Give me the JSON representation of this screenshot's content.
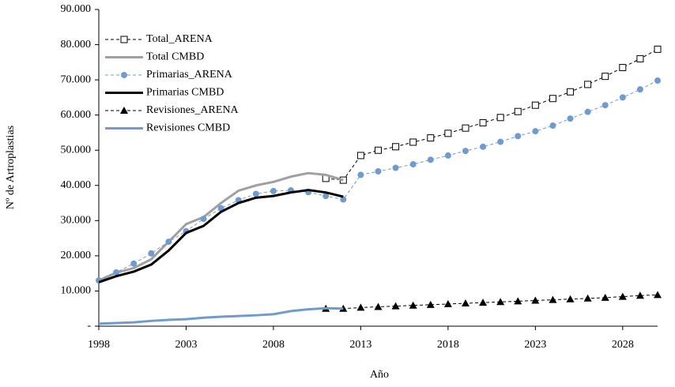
{
  "chart_data": {
    "type": "line",
    "x_label": "Año",
    "y_label": "Nº de Artroplastias",
    "xlim": [
      1998,
      2030
    ],
    "ylim": [
      0,
      90000
    ],
    "xticks": [
      1998,
      2003,
      2008,
      2013,
      2018,
      2023,
      2028
    ],
    "yticks": [
      {
        "value": 0,
        "label": "-"
      },
      {
        "value": 10000,
        "label": "10.000"
      },
      {
        "value": 20000,
        "label": "20.000"
      },
      {
        "value": 30000,
        "label": "30.000"
      },
      {
        "value": 40000,
        "label": "40.000"
      },
      {
        "value": 50000,
        "label": "50.000"
      },
      {
        "value": 60000,
        "label": "60.000"
      },
      {
        "value": 70000,
        "label": "70.000"
      },
      {
        "value": 80000,
        "label": "80.000"
      },
      {
        "value": 90000,
        "label": "90.000"
      }
    ],
    "legend": "upper-left",
    "series": [
      {
        "name": "Total_ARENA",
        "color": "#000000",
        "dash": true,
        "marker": "square",
        "width": 1,
        "x": [
          2011,
          2012,
          2013,
          2014,
          2015,
          2016,
          2017,
          2018,
          2019,
          2020,
          2021,
          2022,
          2023,
          2024,
          2025,
          2026,
          2027,
          2028,
          2029,
          2030
        ],
        "values": [
          42000,
          41500,
          48500,
          50000,
          51000,
          52300,
          53500,
          54800,
          56300,
          57800,
          59300,
          61000,
          62800,
          64700,
          66600,
          68700,
          71000,
          73500,
          76000,
          78700
        ]
      },
      {
        "name": "Total CMBD",
        "color": "#a0a0a0",
        "dash": false,
        "marker": "none",
        "width": 3,
        "x": [
          1998,
          1999,
          2000,
          2001,
          2002,
          2003,
          2004,
          2005,
          2006,
          2007,
          2008,
          2009,
          2010,
          2011,
          2012
        ],
        "values": [
          13000,
          15200,
          16500,
          19000,
          24000,
          29000,
          31000,
          35000,
          38500,
          40000,
          41000,
          42500,
          43500,
          43000,
          41500
        ]
      },
      {
        "name": "Primarias_ARENA",
        "color": "#6f9bcf",
        "dash": true,
        "marker": "circle",
        "width": 1,
        "x": [
          1998,
          1999,
          2000,
          2001,
          2002,
          2003,
          2004,
          2005,
          2006,
          2007,
          2008,
          2009,
          2010,
          2011,
          2012,
          2013,
          2014,
          2015,
          2016,
          2017,
          2018,
          2019,
          2020,
          2021,
          2022,
          2023,
          2024,
          2025,
          2026,
          2027,
          2028,
          2029,
          2030
        ],
        "values": [
          13000,
          15300,
          17800,
          20700,
          24000,
          27000,
          30500,
          33500,
          35800,
          37600,
          38400,
          38600,
          38100,
          37000,
          36000,
          43000,
          44000,
          45000,
          46000,
          47300,
          48500,
          49800,
          51000,
          52400,
          54000,
          55400,
          57000,
          59000,
          60900,
          62800,
          65000,
          67300,
          69800
        ]
      },
      {
        "name": "Primarias CMBD",
        "color": "#000000",
        "dash": false,
        "marker": "none",
        "width": 3,
        "x": [
          1998,
          1999,
          2000,
          2001,
          2002,
          2003,
          2004,
          2005,
          2006,
          2007,
          2008,
          2009,
          2010,
          2011,
          2012
        ],
        "values": [
          12500,
          14200,
          15500,
          17500,
          21500,
          26500,
          28500,
          32500,
          35000,
          36500,
          37000,
          38000,
          38700,
          38000,
          36800
        ]
      },
      {
        "name": "Revisiones_ARENA",
        "color": "#000000",
        "dash": true,
        "marker": "triangle",
        "width": 1,
        "x": [
          2011,
          2012,
          2013,
          2014,
          2015,
          2016,
          2017,
          2018,
          2019,
          2020,
          2021,
          2022,
          2023,
          2024,
          2025,
          2026,
          2027,
          2028,
          2029,
          2030
        ],
        "values": [
          5000,
          5000,
          5300,
          5500,
          5700,
          5900,
          6100,
          6300,
          6500,
          6700,
          6900,
          7100,
          7300,
          7500,
          7700,
          7900,
          8100,
          8400,
          8700,
          8900
        ]
      },
      {
        "name": "Revisiones CMBD",
        "color": "#6f9bcf",
        "dash": false,
        "marker": "none",
        "width": 3,
        "x": [
          1998,
          1999,
          2000,
          2001,
          2002,
          2003,
          2004,
          2005,
          2006,
          2007,
          2008,
          2009,
          2010,
          2011,
          2012
        ],
        "values": [
          700,
          900,
          1100,
          1500,
          1800,
          2000,
          2400,
          2700,
          2900,
          3100,
          3400,
          4300,
          4800,
          5100,
          5000
        ]
      }
    ]
  }
}
